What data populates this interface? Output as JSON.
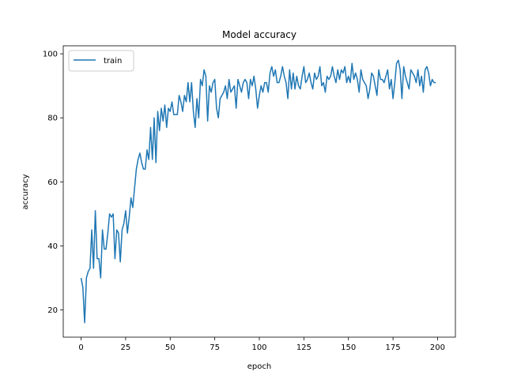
{
  "chart_data": {
    "type": "line",
    "title": "Model accuracy",
    "xlabel": "epoch",
    "ylabel": "accuracy",
    "xlim": [
      -10,
      210
    ],
    "ylim": [
      11.5,
      102.5
    ],
    "xticks": [
      0,
      25,
      50,
      75,
      100,
      125,
      150,
      175,
      200
    ],
    "yticks": [
      20,
      40,
      60,
      80,
      100
    ],
    "legend_position": "top-left",
    "grid": false,
    "series": [
      {
        "name": "train",
        "color": "#1f77b4",
        "x": [
          0,
          1,
          2,
          3,
          4,
          5,
          6,
          7,
          8,
          9,
          10,
          11,
          12,
          13,
          14,
          15,
          16,
          17,
          18,
          19,
          20,
          21,
          22,
          23,
          24,
          25,
          26,
          27,
          28,
          29,
          30,
          31,
          32,
          33,
          34,
          35,
          36,
          37,
          38,
          39,
          40,
          41,
          42,
          43,
          44,
          45,
          46,
          47,
          48,
          49,
          50,
          51,
          52,
          53,
          54,
          55,
          56,
          57,
          58,
          59,
          60,
          61,
          62,
          63,
          64,
          65,
          66,
          67,
          68,
          69,
          70,
          71,
          72,
          73,
          74,
          75,
          76,
          77,
          78,
          79,
          80,
          81,
          82,
          83,
          84,
          85,
          86,
          87,
          88,
          89,
          90,
          91,
          92,
          93,
          94,
          95,
          96,
          97,
          98,
          99,
          100,
          101,
          102,
          103,
          104,
          105,
          106,
          107,
          108,
          109,
          110,
          111,
          112,
          113,
          114,
          115,
          116,
          117,
          118,
          119,
          120,
          121,
          122,
          123,
          124,
          125,
          126,
          127,
          128,
          129,
          130,
          131,
          132,
          133,
          134,
          135,
          136,
          137,
          138,
          139,
          140,
          141,
          142,
          143,
          144,
          145,
          146,
          147,
          148,
          149,
          150,
          151,
          152,
          153,
          154,
          155,
          156,
          157,
          158,
          159,
          160,
          161,
          162,
          163,
          164,
          165,
          166,
          167,
          168,
          169,
          170,
          171,
          172,
          173,
          174,
          175,
          176,
          177,
          178,
          179,
          180,
          181,
          182,
          183,
          184,
          185,
          186,
          187,
          188,
          189,
          190,
          191,
          192,
          193,
          194,
          195,
          196,
          197,
          198,
          199
        ],
        "values": [
          30,
          27,
          16,
          30,
          32,
          33,
          45,
          33,
          51,
          36,
          36,
          30,
          45,
          39,
          39,
          44,
          50,
          49,
          50,
          36,
          45,
          44,
          35,
          45,
          47,
          51,
          44,
          49,
          55,
          52,
          58,
          64,
          67,
          69,
          66,
          64,
          64,
          70,
          67,
          77,
          67,
          80,
          66,
          82,
          76,
          83,
          79,
          84,
          77,
          83,
          82,
          85,
          81,
          81,
          81,
          87,
          85,
          82,
          87,
          85,
          91,
          85,
          91,
          82,
          77,
          86,
          80,
          92,
          90,
          95,
          93,
          79,
          90,
          88,
          91,
          92,
          83,
          80,
          86,
          87,
          88,
          90,
          86,
          92,
          88,
          89,
          90,
          83,
          92,
          90,
          88,
          91,
          92,
          91,
          86,
          92,
          90,
          93,
          89,
          83,
          87,
          90,
          88,
          91,
          91,
          88,
          94,
          96,
          93,
          95,
          91,
          91,
          93,
          96,
          93,
          91,
          86,
          95,
          89,
          94,
          89,
          93,
          90,
          89,
          93,
          96,
          91,
          92,
          94,
          91,
          89,
          94,
          92,
          93,
          96,
          90,
          91,
          88,
          93,
          92,
          93,
          96,
          93,
          91,
          95,
          92,
          95,
          94,
          96,
          91,
          93,
          91,
          97,
          92,
          94,
          92,
          88,
          95,
          92,
          91,
          90,
          86,
          89,
          94,
          93,
          90,
          87,
          95,
          92,
          92,
          91,
          93,
          95,
          89,
          92,
          86,
          91,
          97,
          98,
          95,
          86,
          96,
          93,
          91,
          89,
          95,
          94,
          93,
          91,
          95,
          90,
          93,
          88,
          95,
          96,
          94,
          90,
          92,
          91,
          91
        ]
      }
    ]
  }
}
